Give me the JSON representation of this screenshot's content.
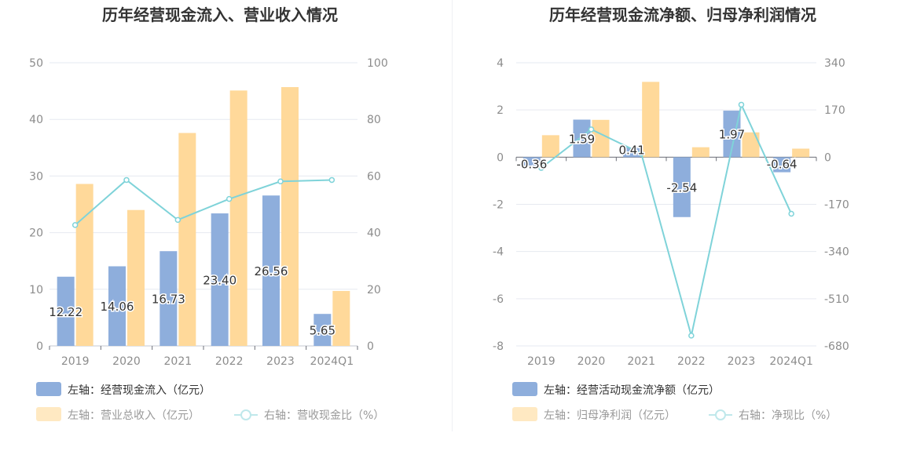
{
  "chart_data": [
    {
      "type": "bar",
      "title": "历年经营现金流入、营业收入情况",
      "categories": [
        "2019",
        "2020",
        "2021",
        "2022",
        "2023",
        "2024Q1"
      ],
      "left_axis": {
        "ticks": [
          "0",
          "10",
          "20",
          "30",
          "40",
          "50"
        ],
        "ylim": [
          0,
          50
        ]
      },
      "right_axis": {
        "ticks": [
          "0",
          "20",
          "40",
          "60",
          "80",
          "100"
        ],
        "ylim": [
          0,
          100
        ]
      },
      "series": [
        {
          "name": "左轴：经营现金流入（亿元）",
          "axis": "left",
          "kind": "bar",
          "values": [
            12.22,
            14.06,
            16.73,
            23.4,
            26.56,
            5.65
          ],
          "labels": [
            "12.22",
            "14.06",
            "16.73",
            "23.40",
            "26.56",
            "5.65"
          ],
          "color": "#8eaedc"
        },
        {
          "name": "左轴：营业总收入（亿元）",
          "axis": "left",
          "kind": "bar",
          "values": [
            28.6,
            24.0,
            37.6,
            45.1,
            45.7,
            9.7
          ],
          "color": "#ffd99a"
        },
        {
          "name": "右轴：营收现金比（%）",
          "axis": "right",
          "kind": "line",
          "values": [
            42.7,
            58.6,
            44.5,
            51.9,
            58.1,
            58.6
          ],
          "color": "#7fd3d9"
        }
      ],
      "grid": true,
      "legend_position": "bottom-left"
    },
    {
      "type": "bar",
      "title": "历年经营现金流净额、归母净利润情况",
      "categories": [
        "2019",
        "2020",
        "2021",
        "2022",
        "2023",
        "2024Q1"
      ],
      "left_axis": {
        "ticks": [
          "-8",
          "-6",
          "-4",
          "-2",
          "0",
          "2",
          "4"
        ],
        "ylim": [
          -8,
          4
        ]
      },
      "right_axis": {
        "ticks": [
          "-680",
          "-510",
          "-340",
          "-170",
          "0",
          "170",
          "340"
        ],
        "ylim": [
          -680,
          340
        ]
      },
      "series": [
        {
          "name": "左轴：经营活动现金流净额（亿元）",
          "axis": "left",
          "kind": "bar",
          "values": [
            -0.36,
            1.59,
            0.41,
            -2.54,
            1.97,
            -0.64
          ],
          "labels": [
            "-0.36",
            "1.59",
            "0.41",
            "-2.54",
            "1.97",
            "-0.64"
          ],
          "color": "#8eaedc"
        },
        {
          "name": "左轴：归母净利润（亿元）",
          "axis": "left",
          "kind": "bar",
          "values": [
            0.93,
            1.58,
            3.19,
            0.42,
            1.05,
            0.36
          ],
          "color": "#ffd99a"
        },
        {
          "name": "右轴：净现比（%）",
          "axis": "right",
          "kind": "line",
          "values": [
            -39,
            100,
            13,
            -643,
            189,
            -204
          ],
          "color": "#7fd3d9"
        }
      ],
      "grid": true,
      "legend_position": "bottom-left"
    }
  ]
}
